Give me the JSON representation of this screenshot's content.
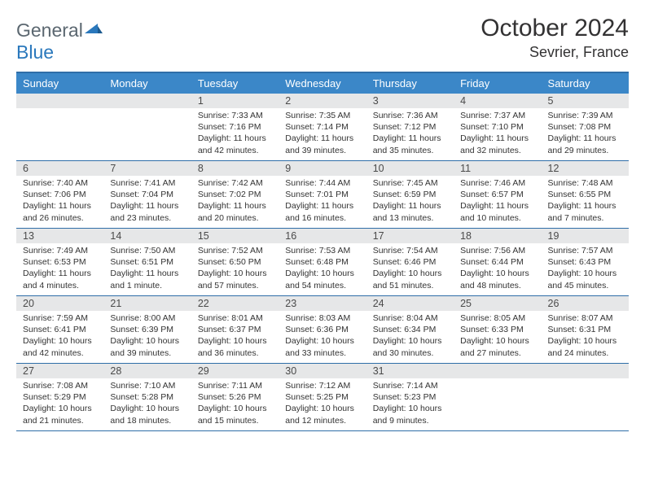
{
  "logo": {
    "word1": "General",
    "word2": "Blue"
  },
  "title": "October 2024",
  "location": "Sevrier, France",
  "colors": {
    "header_bg": "#3b87c8",
    "rule": "#2f6ea8",
    "daynum_bg": "#e6e7e8",
    "logo_gray": "#5b6770",
    "logo_blue": "#2a78bc"
  },
  "day_names": [
    "Sunday",
    "Monday",
    "Tuesday",
    "Wednesday",
    "Thursday",
    "Friday",
    "Saturday"
  ],
  "weeks": [
    [
      {
        "n": "",
        "sr": "",
        "ss": "",
        "dl": ""
      },
      {
        "n": "",
        "sr": "",
        "ss": "",
        "dl": ""
      },
      {
        "n": "1",
        "sr": "Sunrise: 7:33 AM",
        "ss": "Sunset: 7:16 PM",
        "dl": "Daylight: 11 hours and 42 minutes."
      },
      {
        "n": "2",
        "sr": "Sunrise: 7:35 AM",
        "ss": "Sunset: 7:14 PM",
        "dl": "Daylight: 11 hours and 39 minutes."
      },
      {
        "n": "3",
        "sr": "Sunrise: 7:36 AM",
        "ss": "Sunset: 7:12 PM",
        "dl": "Daylight: 11 hours and 35 minutes."
      },
      {
        "n": "4",
        "sr": "Sunrise: 7:37 AM",
        "ss": "Sunset: 7:10 PM",
        "dl": "Daylight: 11 hours and 32 minutes."
      },
      {
        "n": "5",
        "sr": "Sunrise: 7:39 AM",
        "ss": "Sunset: 7:08 PM",
        "dl": "Daylight: 11 hours and 29 minutes."
      }
    ],
    [
      {
        "n": "6",
        "sr": "Sunrise: 7:40 AM",
        "ss": "Sunset: 7:06 PM",
        "dl": "Daylight: 11 hours and 26 minutes."
      },
      {
        "n": "7",
        "sr": "Sunrise: 7:41 AM",
        "ss": "Sunset: 7:04 PM",
        "dl": "Daylight: 11 hours and 23 minutes."
      },
      {
        "n": "8",
        "sr": "Sunrise: 7:42 AM",
        "ss": "Sunset: 7:02 PM",
        "dl": "Daylight: 11 hours and 20 minutes."
      },
      {
        "n": "9",
        "sr": "Sunrise: 7:44 AM",
        "ss": "Sunset: 7:01 PM",
        "dl": "Daylight: 11 hours and 16 minutes."
      },
      {
        "n": "10",
        "sr": "Sunrise: 7:45 AM",
        "ss": "Sunset: 6:59 PM",
        "dl": "Daylight: 11 hours and 13 minutes."
      },
      {
        "n": "11",
        "sr": "Sunrise: 7:46 AM",
        "ss": "Sunset: 6:57 PM",
        "dl": "Daylight: 11 hours and 10 minutes."
      },
      {
        "n": "12",
        "sr": "Sunrise: 7:48 AM",
        "ss": "Sunset: 6:55 PM",
        "dl": "Daylight: 11 hours and 7 minutes."
      }
    ],
    [
      {
        "n": "13",
        "sr": "Sunrise: 7:49 AM",
        "ss": "Sunset: 6:53 PM",
        "dl": "Daylight: 11 hours and 4 minutes."
      },
      {
        "n": "14",
        "sr": "Sunrise: 7:50 AM",
        "ss": "Sunset: 6:51 PM",
        "dl": "Daylight: 11 hours and 1 minute."
      },
      {
        "n": "15",
        "sr": "Sunrise: 7:52 AM",
        "ss": "Sunset: 6:50 PM",
        "dl": "Daylight: 10 hours and 57 minutes."
      },
      {
        "n": "16",
        "sr": "Sunrise: 7:53 AM",
        "ss": "Sunset: 6:48 PM",
        "dl": "Daylight: 10 hours and 54 minutes."
      },
      {
        "n": "17",
        "sr": "Sunrise: 7:54 AM",
        "ss": "Sunset: 6:46 PM",
        "dl": "Daylight: 10 hours and 51 minutes."
      },
      {
        "n": "18",
        "sr": "Sunrise: 7:56 AM",
        "ss": "Sunset: 6:44 PM",
        "dl": "Daylight: 10 hours and 48 minutes."
      },
      {
        "n": "19",
        "sr": "Sunrise: 7:57 AM",
        "ss": "Sunset: 6:43 PM",
        "dl": "Daylight: 10 hours and 45 minutes."
      }
    ],
    [
      {
        "n": "20",
        "sr": "Sunrise: 7:59 AM",
        "ss": "Sunset: 6:41 PM",
        "dl": "Daylight: 10 hours and 42 minutes."
      },
      {
        "n": "21",
        "sr": "Sunrise: 8:00 AM",
        "ss": "Sunset: 6:39 PM",
        "dl": "Daylight: 10 hours and 39 minutes."
      },
      {
        "n": "22",
        "sr": "Sunrise: 8:01 AM",
        "ss": "Sunset: 6:37 PM",
        "dl": "Daylight: 10 hours and 36 minutes."
      },
      {
        "n": "23",
        "sr": "Sunrise: 8:03 AM",
        "ss": "Sunset: 6:36 PM",
        "dl": "Daylight: 10 hours and 33 minutes."
      },
      {
        "n": "24",
        "sr": "Sunrise: 8:04 AM",
        "ss": "Sunset: 6:34 PM",
        "dl": "Daylight: 10 hours and 30 minutes."
      },
      {
        "n": "25",
        "sr": "Sunrise: 8:05 AM",
        "ss": "Sunset: 6:33 PM",
        "dl": "Daylight: 10 hours and 27 minutes."
      },
      {
        "n": "26",
        "sr": "Sunrise: 8:07 AM",
        "ss": "Sunset: 6:31 PM",
        "dl": "Daylight: 10 hours and 24 minutes."
      }
    ],
    [
      {
        "n": "27",
        "sr": "Sunrise: 7:08 AM",
        "ss": "Sunset: 5:29 PM",
        "dl": "Daylight: 10 hours and 21 minutes."
      },
      {
        "n": "28",
        "sr": "Sunrise: 7:10 AM",
        "ss": "Sunset: 5:28 PM",
        "dl": "Daylight: 10 hours and 18 minutes."
      },
      {
        "n": "29",
        "sr": "Sunrise: 7:11 AM",
        "ss": "Sunset: 5:26 PM",
        "dl": "Daylight: 10 hours and 15 minutes."
      },
      {
        "n": "30",
        "sr": "Sunrise: 7:12 AM",
        "ss": "Sunset: 5:25 PM",
        "dl": "Daylight: 10 hours and 12 minutes."
      },
      {
        "n": "31",
        "sr": "Sunrise: 7:14 AM",
        "ss": "Sunset: 5:23 PM",
        "dl": "Daylight: 10 hours and 9 minutes."
      },
      {
        "n": "",
        "sr": "",
        "ss": "",
        "dl": ""
      },
      {
        "n": "",
        "sr": "",
        "ss": "",
        "dl": ""
      }
    ]
  ]
}
